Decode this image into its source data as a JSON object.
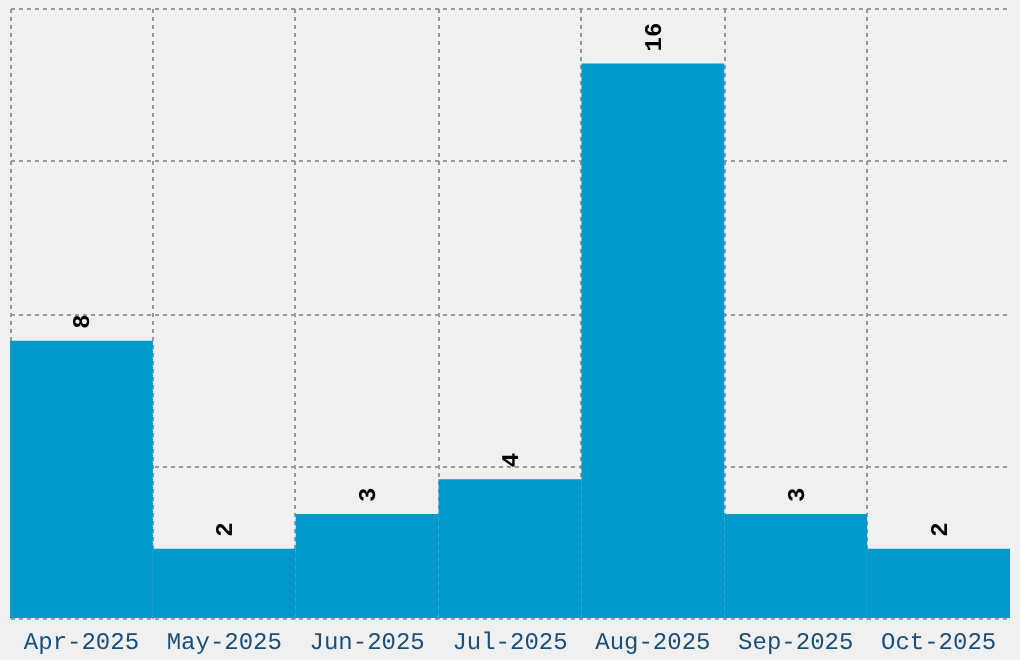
{
  "chart_data": {
    "type": "bar",
    "categories": [
      "Apr-2025",
      "May-2025",
      "Jun-2025",
      "Jul-2025",
      "Aug-2025",
      "Sep-2025",
      "Oct-2025"
    ],
    "values": [
      8,
      2,
      3,
      4,
      16,
      3,
      2
    ],
    "color": "#0099cc",
    "data_labels": true,
    "grid": true,
    "tick_labels": "x",
    "ylim": [
      0,
      17.6
    ],
    "yticks": [
      {
        "value": 0,
        "label": null
      },
      {
        "value": 4.4,
        "label": null
      },
      {
        "value": 8.8,
        "label": null
      },
      {
        "value": 13.2,
        "label": null
      },
      {
        "value": 17.6,
        "label": null
      }
    ]
  }
}
